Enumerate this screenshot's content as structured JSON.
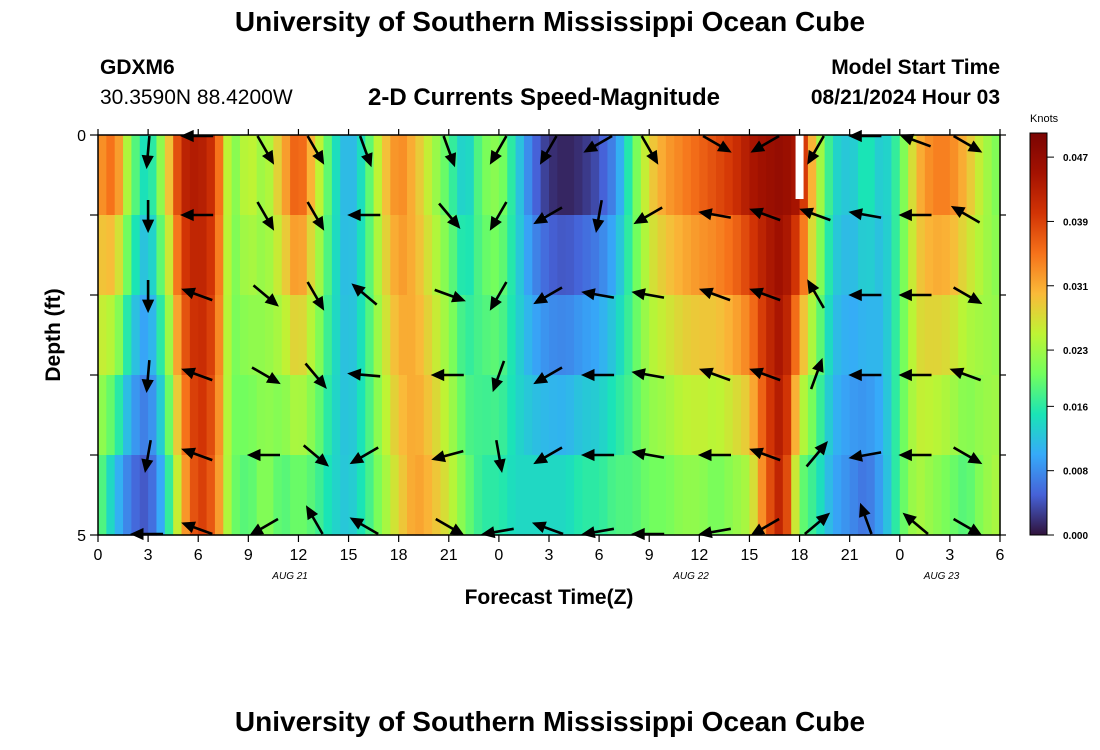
{
  "header": {
    "title": "University of Southern Mississippi Ocean Cube",
    "station_id": "GDXM6",
    "coordinates": "30.3590N  88.4200W",
    "plot_title": "2-D Currents Speed-Magnitude",
    "start_label": "Model Start Time",
    "start_value": "08/21/2024 Hour 03"
  },
  "footer": {
    "title": "University of Southern Mississippi Ocean Cube"
  },
  "colors": {
    "background": "#ffffff",
    "arrow": "#000000",
    "missing": "#ffffff"
  },
  "chart_data": {
    "type": "heatmap",
    "title": "2-D Currents Speed-Magnitude",
    "xlabel": "Forecast Time(Z)",
    "ylabel": "Depth (ft)",
    "x_start_hour": 0,
    "x_end_hour": 54,
    "x_ticks": [
      0,
      3,
      6,
      9,
      12,
      15,
      18,
      21,
      24,
      27,
      30,
      33,
      36,
      39,
      42,
      45,
      48,
      51,
      54
    ],
    "x_tick_labels": [
      "0",
      "3",
      "6",
      "9",
      "12",
      "15",
      "18",
      "21",
      "0",
      "3",
      "6",
      "9",
      "12",
      "15",
      "18",
      "21",
      "0",
      "3",
      "6"
    ],
    "date_labels": [
      {
        "text": "AUG 21",
        "hour": 11.5
      },
      {
        "text": "AUG 22",
        "hour": 35.5
      },
      {
        "text": "AUG 23",
        "hour": 50.5
      }
    ],
    "y_tick_labels": [
      {
        "depth": 0,
        "label": "0"
      },
      {
        "depth": 5,
        "label": "5"
      }
    ],
    "ylim": [
      0,
      5
    ],
    "depth_layers": [
      0.5,
      1.5,
      2.5,
      3.5,
      4.5
    ],
    "colorbar": {
      "label": "Knots",
      "range": [
        0,
        0.05
      ],
      "ticks": [
        "0.000",
        "0.008",
        "0.016",
        "0.023",
        "0.031",
        "0.039",
        "0.047"
      ]
    },
    "speed_profile_surface": [
      [
        0,
        0.032
      ],
      [
        1,
        0.036
      ],
      [
        2,
        0.02
      ],
      [
        3,
        0.013
      ],
      [
        4,
        0.025
      ],
      [
        5,
        0.042
      ],
      [
        6,
        0.044
      ],
      [
        7,
        0.04
      ],
      [
        8,
        0.02
      ],
      [
        9,
        0.026
      ],
      [
        10,
        0.022
      ],
      [
        11,
        0.03
      ],
      [
        12,
        0.038
      ],
      [
        13,
        0.028
      ],
      [
        14,
        0.016
      ],
      [
        15,
        0.01
      ],
      [
        16,
        0.016
      ],
      [
        17,
        0.028
      ],
      [
        18,
        0.034
      ],
      [
        19,
        0.03
      ],
      [
        20,
        0.024
      ],
      [
        21,
        0.018
      ],
      [
        22,
        0.012
      ],
      [
        23,
        0.02
      ],
      [
        24,
        0.022
      ],
      [
        25,
        0.014
      ],
      [
        26,
        0.006
      ],
      [
        27,
        0.002
      ],
      [
        28,
        0.001
      ],
      [
        29,
        0.002
      ],
      [
        30,
        0.004
      ],
      [
        31,
        0.008
      ],
      [
        32,
        0.018
      ],
      [
        33,
        0.028
      ],
      [
        34,
        0.032
      ],
      [
        35,
        0.034
      ],
      [
        36,
        0.036
      ],
      [
        37,
        0.038
      ],
      [
        38,
        0.04
      ],
      [
        39,
        0.044
      ],
      [
        40,
        0.046
      ],
      [
        41,
        0.047
      ],
      [
        42,
        0.044
      ],
      [
        43,
        0.026
      ],
      [
        44,
        0.014
      ],
      [
        45,
        0.012
      ],
      [
        46,
        0.016
      ],
      [
        47,
        0.012
      ],
      [
        48,
        0.018
      ],
      [
        49,
        0.03
      ],
      [
        50,
        0.034
      ],
      [
        51,
        0.034
      ],
      [
        52,
        0.03
      ],
      [
        53,
        0.024
      ],
      [
        54,
        0.02
      ]
    ],
    "speed_profile_bottom": [
      [
        0,
        0.02
      ],
      [
        1,
        0.012
      ],
      [
        2,
        0.006
      ],
      [
        3,
        0.004
      ],
      [
        4,
        0.012
      ],
      [
        5,
        0.03
      ],
      [
        6,
        0.04
      ],
      [
        7,
        0.036
      ],
      [
        8,
        0.02
      ],
      [
        9,
        0.018
      ],
      [
        10,
        0.022
      ],
      [
        11,
        0.018
      ],
      [
        12,
        0.02
      ],
      [
        13,
        0.018
      ],
      [
        14,
        0.014
      ],
      [
        15,
        0.012
      ],
      [
        16,
        0.016
      ],
      [
        17,
        0.022
      ],
      [
        18,
        0.028
      ],
      [
        19,
        0.032
      ],
      [
        20,
        0.03
      ],
      [
        21,
        0.026
      ],
      [
        22,
        0.02
      ],
      [
        23,
        0.016
      ],
      [
        24,
        0.016
      ],
      [
        25,
        0.014
      ],
      [
        26,
        0.014
      ],
      [
        27,
        0.014
      ],
      [
        28,
        0.014
      ],
      [
        29,
        0.016
      ],
      [
        30,
        0.016
      ],
      [
        31,
        0.018
      ],
      [
        32,
        0.018
      ],
      [
        33,
        0.02
      ],
      [
        34,
        0.02
      ],
      [
        35,
        0.022
      ],
      [
        36,
        0.022
      ],
      [
        37,
        0.02
      ],
      [
        38,
        0.022
      ],
      [
        39,
        0.024
      ],
      [
        40,
        0.036
      ],
      [
        41,
        0.044
      ],
      [
        42,
        0.02
      ],
      [
        43,
        0.016
      ],
      [
        44,
        0.01
      ],
      [
        45,
        0.008
      ],
      [
        46,
        0.006
      ],
      [
        47,
        0.01
      ],
      [
        48,
        0.018
      ],
      [
        49,
        0.024
      ],
      [
        50,
        0.022
      ],
      [
        51,
        0.02
      ],
      [
        52,
        0.018
      ],
      [
        53,
        0.022
      ],
      [
        54,
        0.024
      ]
    ],
    "missing_cell": {
      "hour": 42,
      "depth": 0.5
    },
    "vector_hours": [
      3,
      6,
      10,
      13,
      16,
      21,
      24,
      27,
      30,
      33,
      37,
      40,
      43,
      46,
      49,
      52
    ],
    "vectors_deg": [
      [
        95,
        180,
        60,
        60,
        70,
        70,
        120,
        120,
        150,
        60,
        30,
        150,
        120,
        180,
        200,
        30
      ],
      [
        90,
        180,
        60,
        60,
        180,
        50,
        120,
        150,
        100,
        150,
        190,
        200,
        200,
        190,
        180,
        210
      ],
      [
        90,
        200,
        40,
        60,
        220,
        20,
        120,
        150,
        190,
        190,
        200,
        200,
        240,
        180,
        180,
        30
      ],
      [
        95,
        200,
        30,
        50,
        185,
        180,
        110,
        150,
        180,
        190,
        200,
        200,
        290,
        180,
        180,
        200
      ],
      [
        100,
        200,
        180,
        40,
        150,
        165,
        80,
        150,
        180,
        190,
        180,
        200,
        310,
        170,
        180,
        30
      ],
      [
        180,
        200,
        150,
        240,
        210,
        30,
        170,
        200,
        170,
        180,
        170,
        150,
        320,
        250,
        220,
        30
      ]
    ]
  }
}
